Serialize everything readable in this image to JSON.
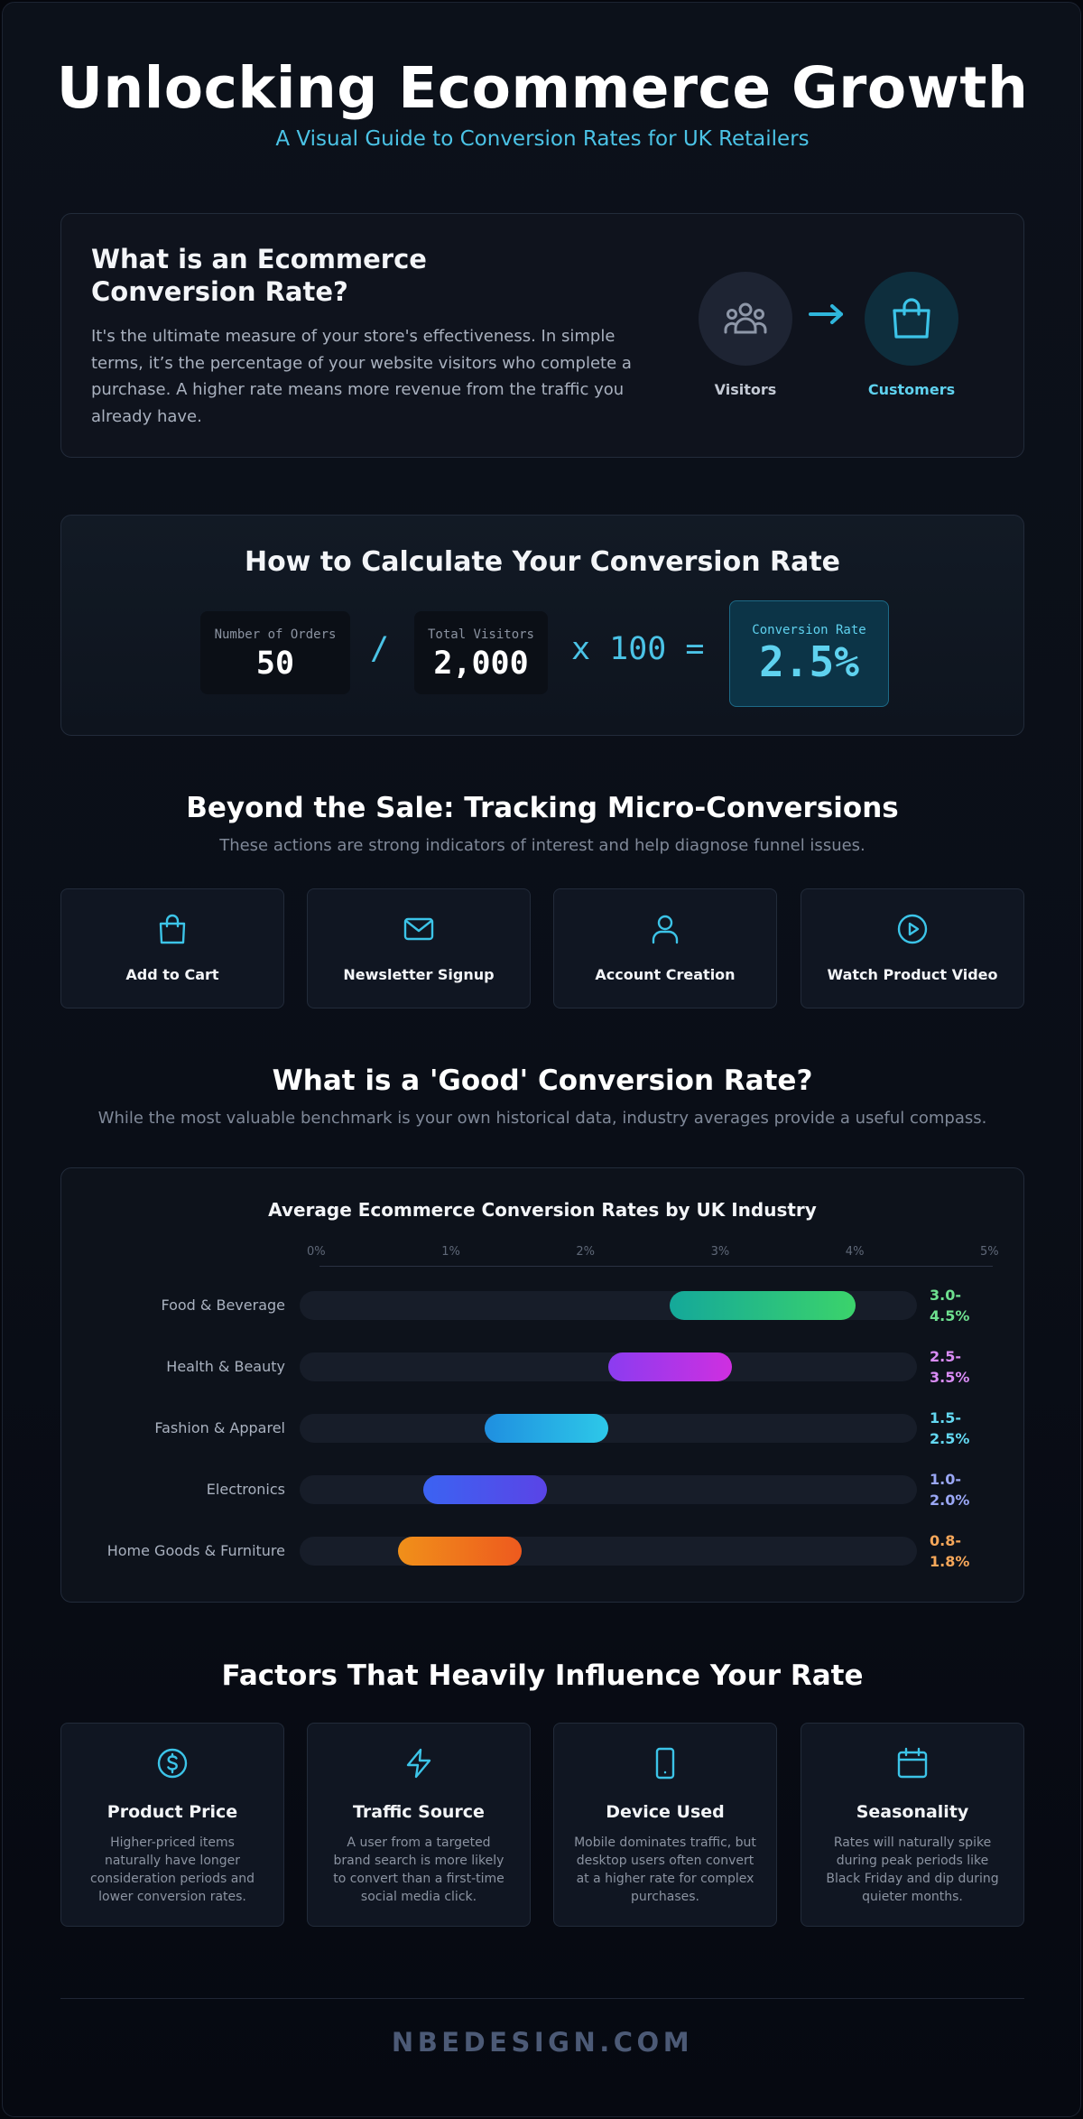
{
  "header": {
    "title": "Unlocking Ecommerce Growth",
    "subtitle": "A Visual Guide to Conversion Rates for UK Retailers"
  },
  "intro": {
    "title": "What is an Ecommerce Conversion Rate?",
    "body": "It's the ultimate measure of your store's effectiveness. In simple terms, it’s the percentage of your website visitors who complete a purchase. A higher rate means more revenue from the traffic you already have.",
    "visitors_label": "Visitors",
    "customers_label": "Customers",
    "icons": [
      "users-icon",
      "arrow-right-icon",
      "shopping-bag-icon"
    ]
  },
  "calc": {
    "title": "How to Calculate Your Conversion Rate",
    "orders_label": "Number of Orders",
    "orders_value": "50",
    "divide": "/",
    "visitors_label": "Total Visitors",
    "visitors_value": "2,000",
    "multiply": "x 100 =",
    "rate_label": "Conversion Rate",
    "rate_value": "2.5%"
  },
  "micro": {
    "title": "Beyond the Sale: Tracking Micro-Conversions",
    "subtitle": "These actions are strong indicators of interest and help diagnose funnel issues.",
    "items": [
      {
        "label": "Add to Cart",
        "icon": "shopping-bag-icon"
      },
      {
        "label": "Newsletter Signup",
        "icon": "mail-icon"
      },
      {
        "label": "Account Creation",
        "icon": "user-icon"
      },
      {
        "label": "Watch Product Video",
        "icon": "play-circle-icon"
      }
    ]
  },
  "benchmark": {
    "title": "What is a 'Good' Conversion Rate?",
    "subtitle": "While the most valuable benchmark is your own historical data, industry averages provide a useful compass."
  },
  "chart_data": {
    "type": "bar",
    "orientation": "horizontal-range",
    "title": "Average Ecommerce Conversion Rates by UK Industry",
    "x_ticks": [
      "0%",
      "1%",
      "2%",
      "3%",
      "4%",
      "5%"
    ],
    "xlim": [
      0,
      5
    ],
    "grid": false,
    "categories": [
      "Food & Beverage",
      "Health & Beauty",
      "Fashion & Apparel",
      "Electronics",
      "Home Goods & Furniture"
    ],
    "ranges": [
      [
        3.0,
        4.5
      ],
      [
        2.5,
        3.5
      ],
      [
        1.5,
        2.5
      ],
      [
        1.0,
        2.0
      ],
      [
        0.8,
        1.8
      ]
    ],
    "range_labels": [
      "3.0-4.5%",
      "2.5-3.5%",
      "1.5-2.5%",
      "1.0-2.0%",
      "0.8-1.8%"
    ],
    "colors": [
      [
        "#14a89a",
        "#3bd36b"
      ],
      [
        "#8b3cf0",
        "#cf2fe0"
      ],
      [
        "#1f8fe0",
        "#2dc8e8"
      ],
      [
        "#3b63f2",
        "#5a44e6"
      ],
      [
        "#f0901a",
        "#ee5a1e"
      ]
    ],
    "label_colors": [
      "#6ee08f",
      "#d98cf5",
      "#63d8f2",
      "#9aa7f5",
      "#f6a75a"
    ]
  },
  "factors": {
    "title": "Factors That Heavily Influence Your Rate",
    "items": [
      {
        "title": "Product Price",
        "desc": "Higher-priced items naturally have longer consideration periods and lower conversion rates.",
        "icon": "dollar-circle-icon"
      },
      {
        "title": "Traffic Source",
        "desc": "A user from a targeted brand search is more likely to convert than a first-time social media click.",
        "icon": "lightning-icon"
      },
      {
        "title": "Device Used",
        "desc": "Mobile dominates traffic, but desktop users often convert at a higher rate for complex purchases.",
        "icon": "smartphone-icon"
      },
      {
        "title": "Seasonality",
        "desc": "Rates will naturally spike during peak periods like Black Friday and dip during quieter months.",
        "icon": "calendar-icon"
      }
    ]
  },
  "footer": {
    "brand": "NBEDESIGN.COM"
  },
  "colors": {
    "accent": "#4bc3e6",
    "background": "#0a0e17",
    "card": "#0f141e"
  }
}
